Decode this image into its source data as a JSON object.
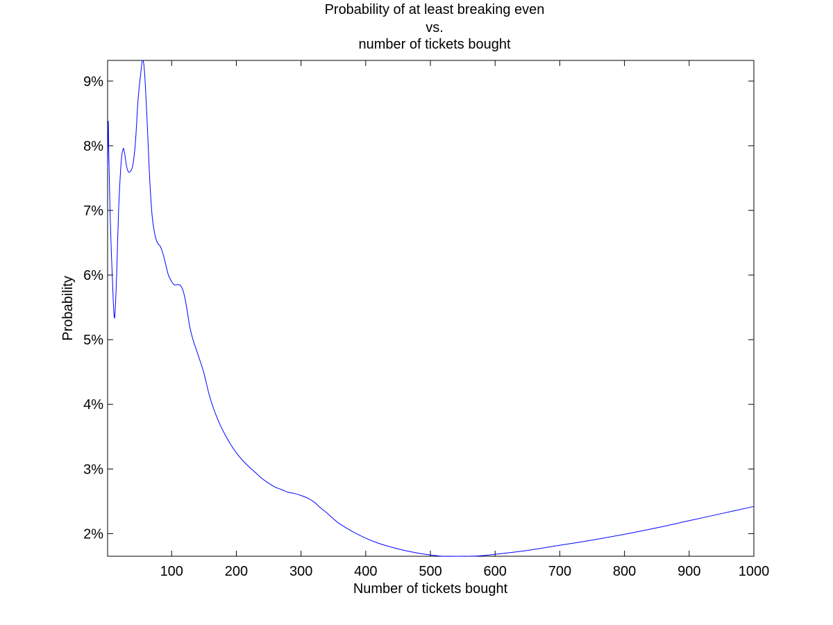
{
  "chart_data": {
    "type": "line",
    "title": [
      "Probability of at least breaking even",
      "vs.",
      "number of tickets bought"
    ],
    "xlabel": "Number of tickets bought",
    "ylabel": "Probability",
    "xlim": [
      1,
      1000
    ],
    "ylim": [
      0.0165,
      0.0932
    ],
    "grid": false,
    "x_ticks": [
      {
        "value": 100,
        "label": "100"
      },
      {
        "value": 200,
        "label": "200"
      },
      {
        "value": 300,
        "label": "300"
      },
      {
        "value": 400,
        "label": "400"
      },
      {
        "value": 500,
        "label": "500"
      },
      {
        "value": 600,
        "label": "600"
      },
      {
        "value": 700,
        "label": "700"
      },
      {
        "value": 800,
        "label": "800"
      },
      {
        "value": 900,
        "label": "900"
      },
      {
        "value": 1000,
        "label": "1000"
      }
    ],
    "y_ticks": [
      {
        "value": 0.02,
        "label": "2%"
      },
      {
        "value": 0.03,
        "label": "3%"
      },
      {
        "value": 0.04,
        "label": "4%"
      },
      {
        "value": 0.05,
        "label": "5%"
      },
      {
        "value": 0.06,
        "label": "6%"
      },
      {
        "value": 0.07,
        "label": "7%"
      },
      {
        "value": 0.08,
        "label": "8%"
      },
      {
        "value": 0.09,
        "label": "9%"
      }
    ],
    "series": [
      {
        "color": "#0000ff",
        "x": [
          1,
          2,
          3,
          5,
          7,
          9,
          10,
          12,
          15,
          18,
          22,
          25,
          27,
          30,
          33,
          36,
          40,
          44,
          48,
          52,
          55,
          58,
          62,
          66,
          70,
          74,
          78,
          82,
          86,
          90,
          95,
          100,
          104,
          108,
          112,
          116,
          120,
          124,
          128,
          133,
          138,
          143,
          150,
          158,
          165,
          172,
          180,
          190,
          200,
          210,
          220,
          230,
          240,
          250,
          260,
          270,
          280,
          290,
          300,
          310,
          320,
          330,
          340,
          350,
          360,
          380,
          400,
          420,
          440,
          460,
          480,
          500,
          520,
          540,
          560,
          580,
          600,
          650,
          700,
          750,
          800,
          850,
          900,
          950,
          1000
        ],
        "y": [
          0.0765,
          0.0838,
          0.078,
          0.069,
          0.063,
          0.058,
          0.0555,
          0.0535,
          0.06,
          0.07,
          0.0775,
          0.0795,
          0.079,
          0.077,
          0.076,
          0.076,
          0.077,
          0.0805,
          0.087,
          0.091,
          0.0932,
          0.0915,
          0.084,
          0.075,
          0.069,
          0.0663,
          0.065,
          0.0645,
          0.0635,
          0.062,
          0.06,
          0.059,
          0.0585,
          0.0585,
          0.0585,
          0.058,
          0.0567,
          0.0545,
          0.052,
          0.05,
          0.0485,
          0.047,
          0.0448,
          0.0415,
          0.0393,
          0.0375,
          0.0358,
          0.034,
          0.0325,
          0.0313,
          0.0303,
          0.0294,
          0.0285,
          0.0278,
          0.0272,
          0.0268,
          0.0264,
          0.0262,
          0.0259,
          0.0255,
          0.0249,
          0.024,
          0.0232,
          0.0223,
          0.0215,
          0.0203,
          0.0193,
          0.0185,
          0.0179,
          0.0174,
          0.017,
          0.0167,
          0.0165,
          0.0165,
          0.0165,
          0.0166,
          0.0168,
          0.0174,
          0.0182,
          0.019,
          0.0199,
          0.0209,
          0.022,
          0.0231,
          0.0242
        ]
      }
    ]
  }
}
